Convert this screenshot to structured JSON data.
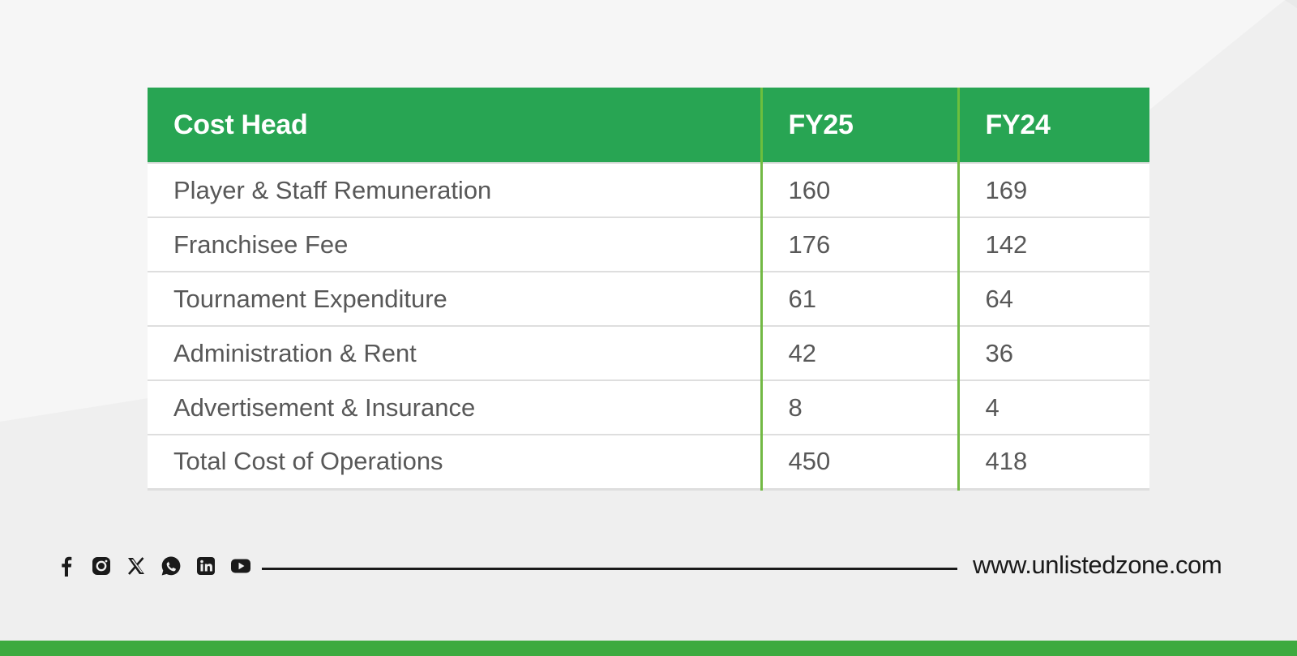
{
  "table": {
    "headers": [
      "Cost Head",
      "FY25",
      "FY24"
    ],
    "rows": [
      [
        "Player & Staff Remuneration",
        "160",
        "169"
      ],
      [
        "Franchisee Fee",
        "176",
        "142"
      ],
      [
        "Tournament Expenditure",
        "61",
        "64"
      ],
      [
        "Administration & Rent",
        "42",
        "36"
      ],
      [
        "Advertisement & Insurance",
        "8",
        "4"
      ],
      [
        "Total Cost of Operations",
        "450",
        "418"
      ]
    ]
  },
  "footer": {
    "social_icons": [
      "facebook-icon",
      "instagram-icon",
      "x-icon",
      "whatsapp-icon",
      "linkedin-icon",
      "youtube-icon"
    ],
    "website": "www.unlistedzone.com"
  },
  "colors": {
    "header_green": "#28a553",
    "separator_green": "#72b944",
    "bottom_bar_green": "#3daa3f",
    "text_gray": "#585858"
  }
}
